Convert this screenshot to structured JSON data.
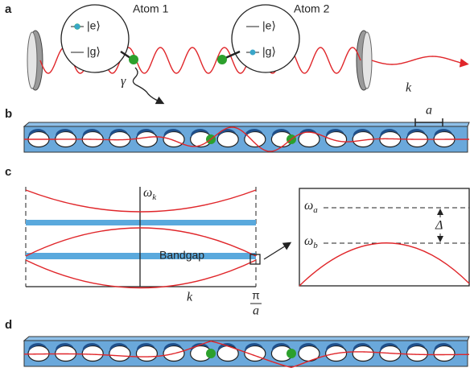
{
  "panels": {
    "a": {
      "label": "a",
      "atom1": {
        "title": "Atom 1",
        "excited": "|e⟩",
        "ground": "|g⟩"
      },
      "atom2": {
        "title": "Atom 2",
        "excited": "|e⟩",
        "ground": "|g⟩"
      },
      "decay": "γ",
      "wavevector": "k"
    },
    "b": {
      "label": "b",
      "lattice_constant": "a"
    },
    "c": {
      "label": "c",
      "frequency_axis": {
        "symbol": "ω",
        "sub": "k"
      },
      "bandgap": "Bandgap",
      "k_axis": "k",
      "zone_edge": {
        "num": "π",
        "den": "a"
      },
      "inset": {
        "omega_a": {
          "symbol": "ω",
          "sub": "a"
        },
        "omega_b": {
          "symbol": "ω",
          "sub": "b"
        },
        "detuning": "Δ"
      }
    },
    "d": {
      "label": "d"
    }
  }
}
